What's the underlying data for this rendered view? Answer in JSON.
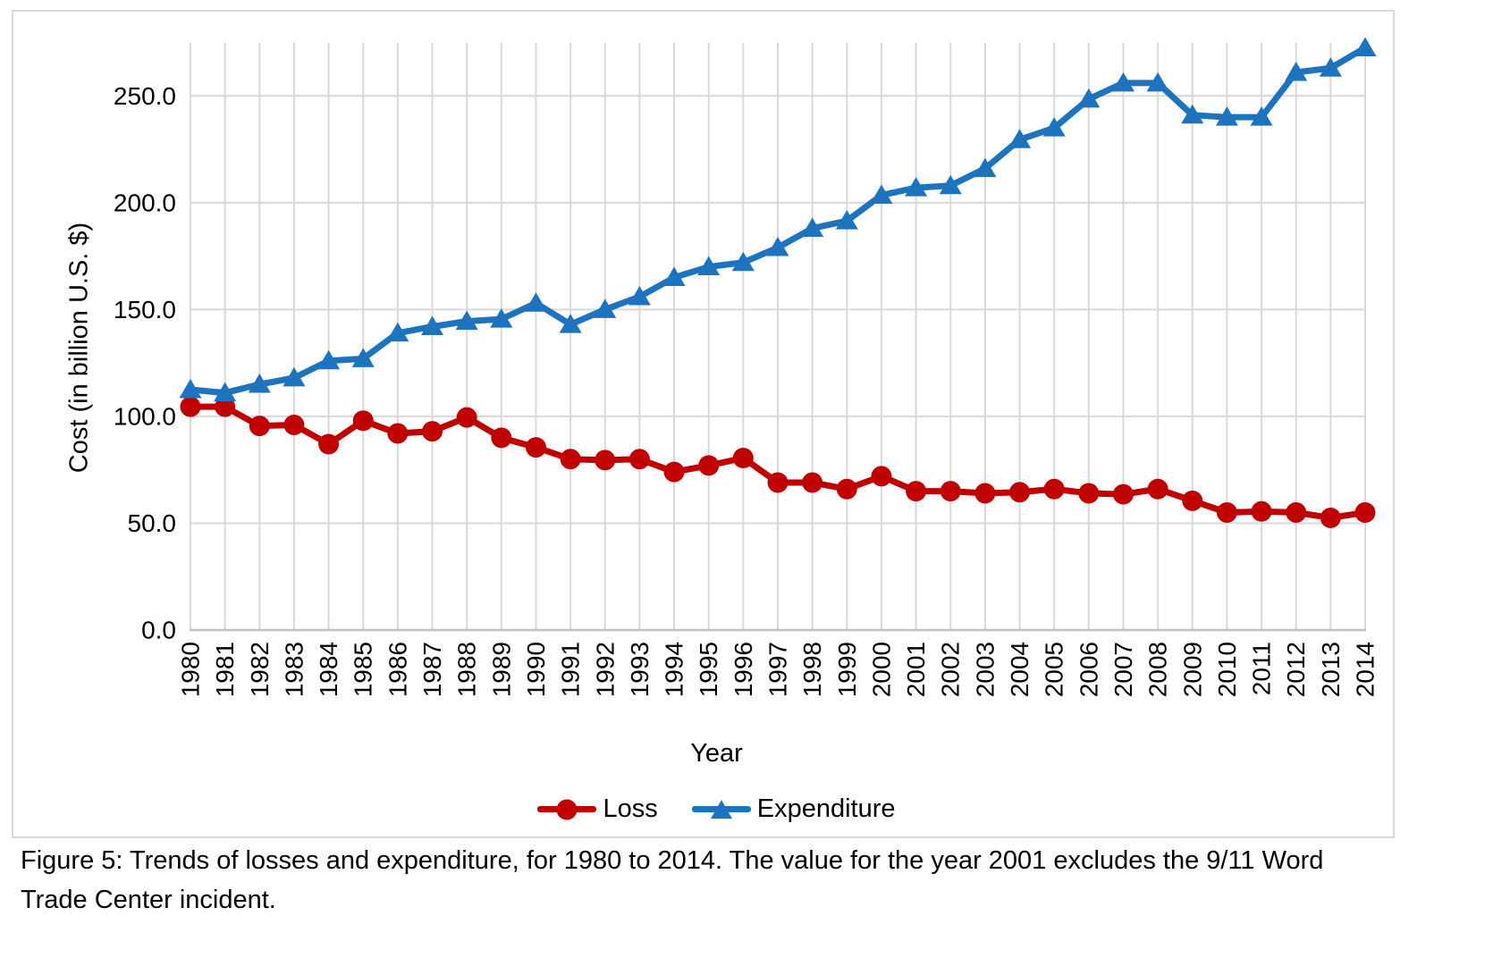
{
  "figure": {
    "caption": "Figure 5: Trends of losses and expenditure, for 1980 to 2014. The value for the year 2001 excludes the 9/11 Word Trade Center incident."
  },
  "chart_data": {
    "type": "line",
    "xlabel": "Year",
    "ylabel": "Cost (in billion U.S. $)",
    "x": [
      1980,
      1981,
      1982,
      1983,
      1984,
      1985,
      1986,
      1987,
      1988,
      1989,
      1990,
      1991,
      1992,
      1993,
      1994,
      1995,
      1996,
      1997,
      1998,
      1999,
      2000,
      2001,
      2002,
      2003,
      2004,
      2005,
      2006,
      2007,
      2008,
      2009,
      2010,
      2011,
      2012,
      2013,
      2014
    ],
    "series": [
      {
        "name": "Loss",
        "marker": "circle",
        "color": "#C00000",
        "values": [
          104.5,
          104.5,
          95.5,
          96,
          87,
          98,
          92,
          93,
          99.5,
          90,
          85.5,
          80,
          79.5,
          80,
          74,
          77,
          80.5,
          69,
          69,
          66,
          72,
          65,
          65,
          64,
          64.5,
          66,
          64,
          63.5,
          66,
          60.5,
          55,
          55.5,
          55,
          52.5,
          55
        ]
      },
      {
        "name": "Expenditure",
        "marker": "triangle",
        "color": "#1E73BE",
        "values": [
          112.5,
          111,
          115,
          118,
          126,
          127,
          139,
          142,
          144.5,
          145.5,
          153,
          143,
          150,
          156,
          165,
          170,
          172,
          179,
          188,
          191.5,
          203.5,
          207,
          208,
          216,
          229.5,
          235,
          248.5,
          256,
          256,
          241,
          240,
          240,
          261,
          263,
          272.5
        ]
      }
    ],
    "ylim": [
      0,
      275
    ],
    "yticks": [
      0,
      50,
      100,
      150,
      200,
      250
    ],
    "ytick_labels": [
      "0.0",
      "50.0",
      "100.0",
      "150.0",
      "200.0",
      "250.0"
    ],
    "grid": true,
    "legend_position": "bottom",
    "colors": {
      "gridline": "#D9D9D9",
      "axis_line": "#BFBFBF",
      "frame_border": "#D9D9D9",
      "text": "#000000"
    }
  }
}
